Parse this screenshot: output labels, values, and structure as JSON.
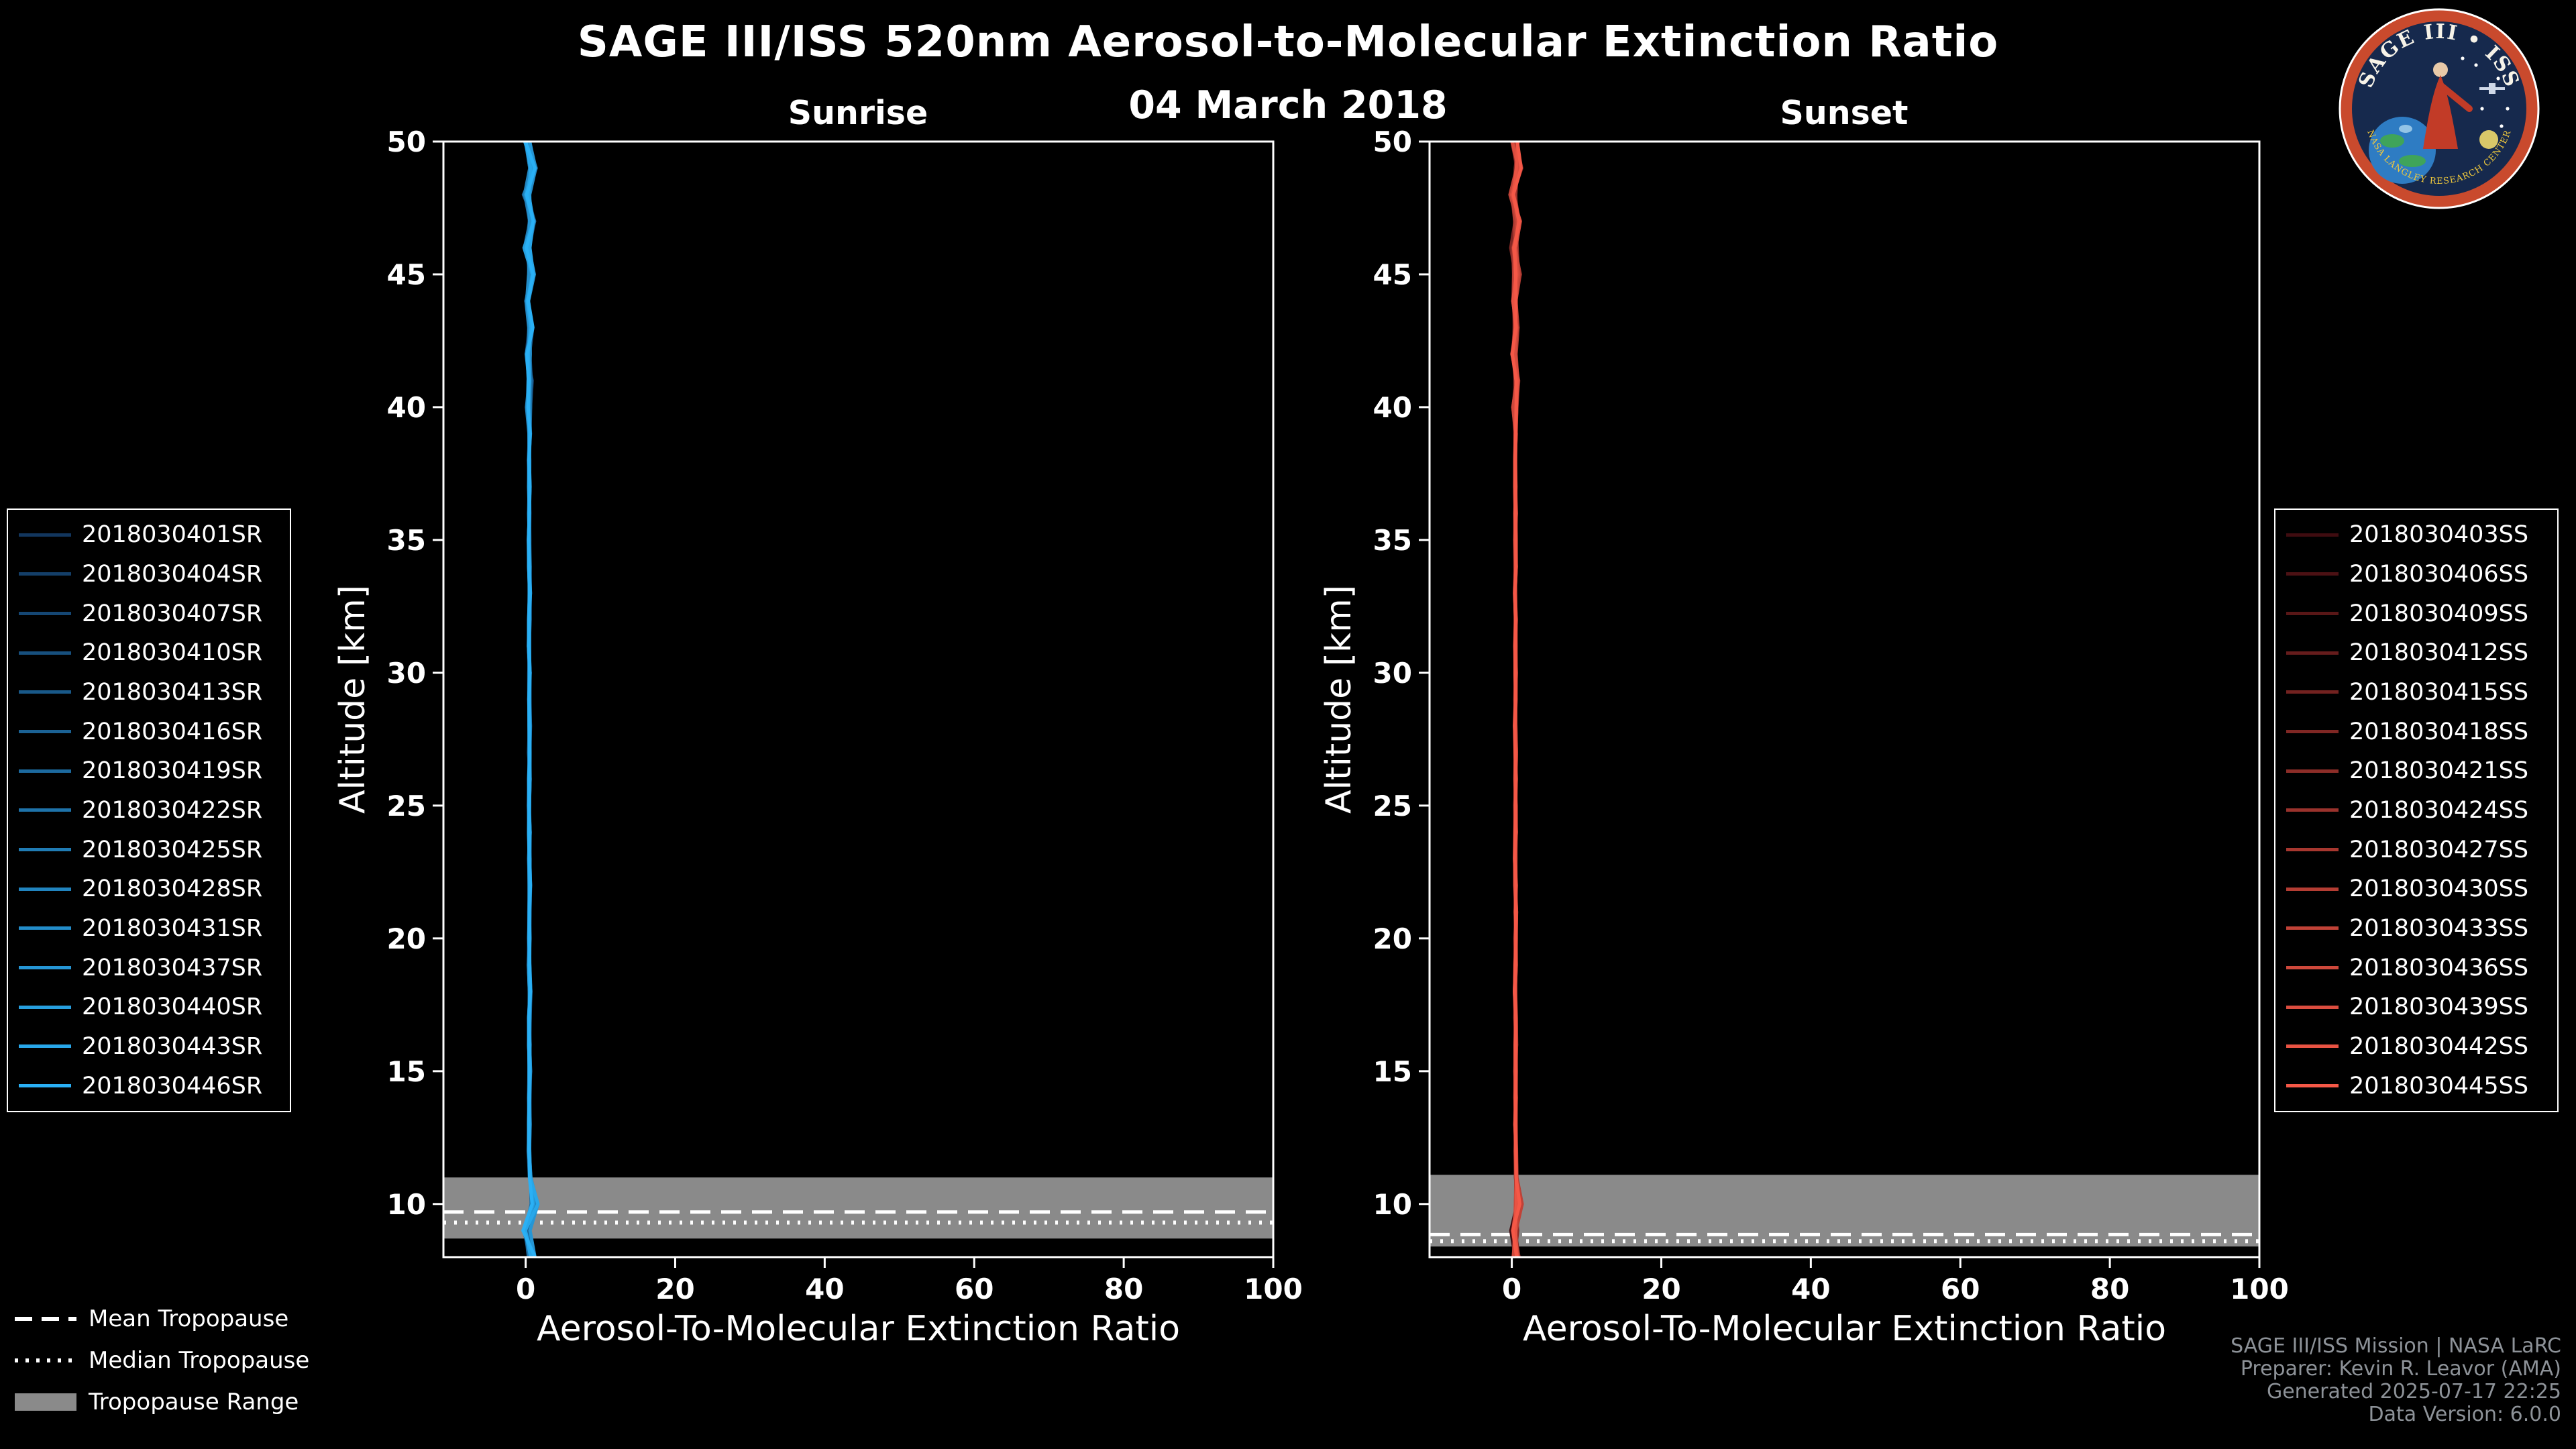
{
  "header": {
    "title": "SAGE III/ISS 520nm Aerosol-to-Molecular Extinction Ratio",
    "date": "04 March 2018"
  },
  "logo": {
    "title": "SAGE III • ISS",
    "band": "NASA LANGLEY RESEARCH CENTER"
  },
  "tropopause_legend": {
    "mean": "Mean Tropopause",
    "median": "Median Tropopause",
    "range": "Tropopause Range"
  },
  "credits": {
    "line1": "SAGE III/ISS Mission | NASA LaRC",
    "line2": "Preparer: Kevin R. Leavor (AMA)",
    "line3": "Generated 2025-07-17 22:25",
    "line4": "Data Version: 6.0.0"
  },
  "chart_data": [
    {
      "type": "line",
      "title": "Sunrise",
      "xlabel": "Aerosol-To-Molecular Extinction Ratio",
      "ylabel": "Altitude [km]",
      "xlim": [
        -11,
        100
      ],
      "ylim": [
        8,
        50
      ],
      "xticks": [
        0,
        20,
        40,
        60,
        80,
        100
      ],
      "yticks": [
        10,
        15,
        20,
        25,
        30,
        35,
        40,
        45,
        50
      ],
      "grid": false,
      "legend_position": "outside-left",
      "series": [
        {
          "name": "2018030401SR",
          "color": "#12365e"
        },
        {
          "name": "2018030404SR",
          "color": "#143f69"
        },
        {
          "name": "2018030407SR",
          "color": "#154774"
        },
        {
          "name": "2018030410SR",
          "color": "#17507e"
        },
        {
          "name": "2018030413SR",
          "color": "#195989"
        },
        {
          "name": "2018030416SR",
          "color": "#1b6294"
        },
        {
          "name": "2018030419SR",
          "color": "#1c6a9f"
        },
        {
          "name": "2018030422SR",
          "color": "#1e73aa"
        },
        {
          "name": "2018030425SR",
          "color": "#207cb4"
        },
        {
          "name": "2018030428SR",
          "color": "#2184bf"
        },
        {
          "name": "2018030431SR",
          "color": "#238dca"
        },
        {
          "name": "2018030437SR",
          "color": "#2596d5"
        },
        {
          "name": "2018030440SR",
          "color": "#279fdf"
        },
        {
          "name": "2018030443SR",
          "color": "#28a7ea"
        },
        {
          "name": "2018030446SR",
          "color": "#2ab0f5"
        }
      ],
      "profile": {
        "altitude_km": [
          50,
          49,
          48,
          47,
          46,
          45,
          44,
          43,
          42,
          41,
          40,
          39,
          38,
          37,
          36,
          35,
          34,
          33,
          32,
          31,
          30,
          29,
          28,
          27,
          26,
          25,
          24,
          23,
          22,
          21,
          20,
          19,
          18,
          17,
          16,
          15,
          14,
          13,
          12,
          11,
          10,
          9,
          8
        ],
        "ratio": [
          0.3,
          1.0,
          0.1,
          0.9,
          0.2,
          0.8,
          0.3,
          0.7,
          0.35,
          0.6,
          0.4,
          0.55,
          0.45,
          0.5,
          0.5,
          0.45,
          0.5,
          0.55,
          0.5,
          0.45,
          0.5,
          0.5,
          0.55,
          0.5,
          0.5,
          0.45,
          0.5,
          0.5,
          0.55,
          0.5,
          0.5,
          0.45,
          0.6,
          0.5,
          0.5,
          0.55,
          0.5,
          0.5,
          0.45,
          0.6,
          1.2,
          0.1,
          0.8
        ]
      },
      "tropopause": {
        "mean_km": 9.7,
        "median_km": 9.3,
        "range_km": [
          8.7,
          11.0
        ]
      }
    },
    {
      "type": "line",
      "title": "Sunset",
      "xlabel": "Aerosol-To-Molecular Extinction Ratio",
      "ylabel": "Altitude [km]",
      "xlim": [
        -11,
        100
      ],
      "ylim": [
        8,
        50
      ],
      "xticks": [
        0,
        20,
        40,
        60,
        80,
        100
      ],
      "yticks": [
        10,
        15,
        20,
        25,
        30,
        35,
        40,
        45,
        50
      ],
      "grid": false,
      "legend_position": "outside-right",
      "series": [
        {
          "name": "2018030403SS",
          "color": "#3f0c10"
        },
        {
          "name": "2018030406SS",
          "color": "#4c1114"
        },
        {
          "name": "2018030409SS",
          "color": "#591717"
        },
        {
          "name": "2018030412SS",
          "color": "#661c1c"
        },
        {
          "name": "2018030415SS",
          "color": "#732220"
        },
        {
          "name": "2018030418SS",
          "color": "#802724"
        },
        {
          "name": "2018030421SS",
          "color": "#8d2d28"
        },
        {
          "name": "2018030424SS",
          "color": "#9a322c"
        },
        {
          "name": "2018030427SS",
          "color": "#a7372f"
        },
        {
          "name": "2018030430SS",
          "color": "#b43d33"
        },
        {
          "name": "2018030433SS",
          "color": "#c14237"
        },
        {
          "name": "2018030436SS",
          "color": "#ce483b"
        },
        {
          "name": "2018030439SS",
          "color": "#db4d3f"
        },
        {
          "name": "2018030442SS",
          "color": "#e85343"
        },
        {
          "name": "2018030445SS",
          "color": "#f55847"
        }
      ],
      "profile": {
        "altitude_km": [
          50,
          49,
          48,
          47,
          46,
          45,
          44,
          43,
          42,
          41,
          40,
          39,
          38,
          37,
          36,
          35,
          34,
          33,
          32,
          31,
          30,
          29,
          28,
          27,
          26,
          25,
          24,
          23,
          22,
          21,
          20,
          19,
          18,
          17,
          16,
          15,
          14,
          13,
          12,
          11,
          10,
          9,
          8
        ],
        "ratio": [
          0.4,
          0.9,
          0.2,
          0.8,
          0.3,
          0.7,
          0.4,
          0.6,
          0.3,
          0.65,
          0.4,
          0.5,
          0.5,
          0.45,
          0.5,
          0.5,
          0.5,
          0.45,
          0.55,
          0.5,
          0.5,
          0.5,
          0.45,
          0.55,
          0.5,
          0.5,
          0.5,
          0.45,
          0.5,
          0.55,
          0.5,
          0.5,
          0.45,
          0.5,
          0.55,
          0.5,
          0.5,
          0.5,
          0.55,
          0.6,
          0.9,
          0.3,
          0.6
        ]
      },
      "tropopause": {
        "mean_km": 8.85,
        "median_km": 8.6,
        "range_km": [
          8.4,
          11.1
        ]
      }
    }
  ],
  "style": {
    "band_color": "#8a8a8a",
    "axis_color": "#ffffff",
    "background": "#000000"
  }
}
